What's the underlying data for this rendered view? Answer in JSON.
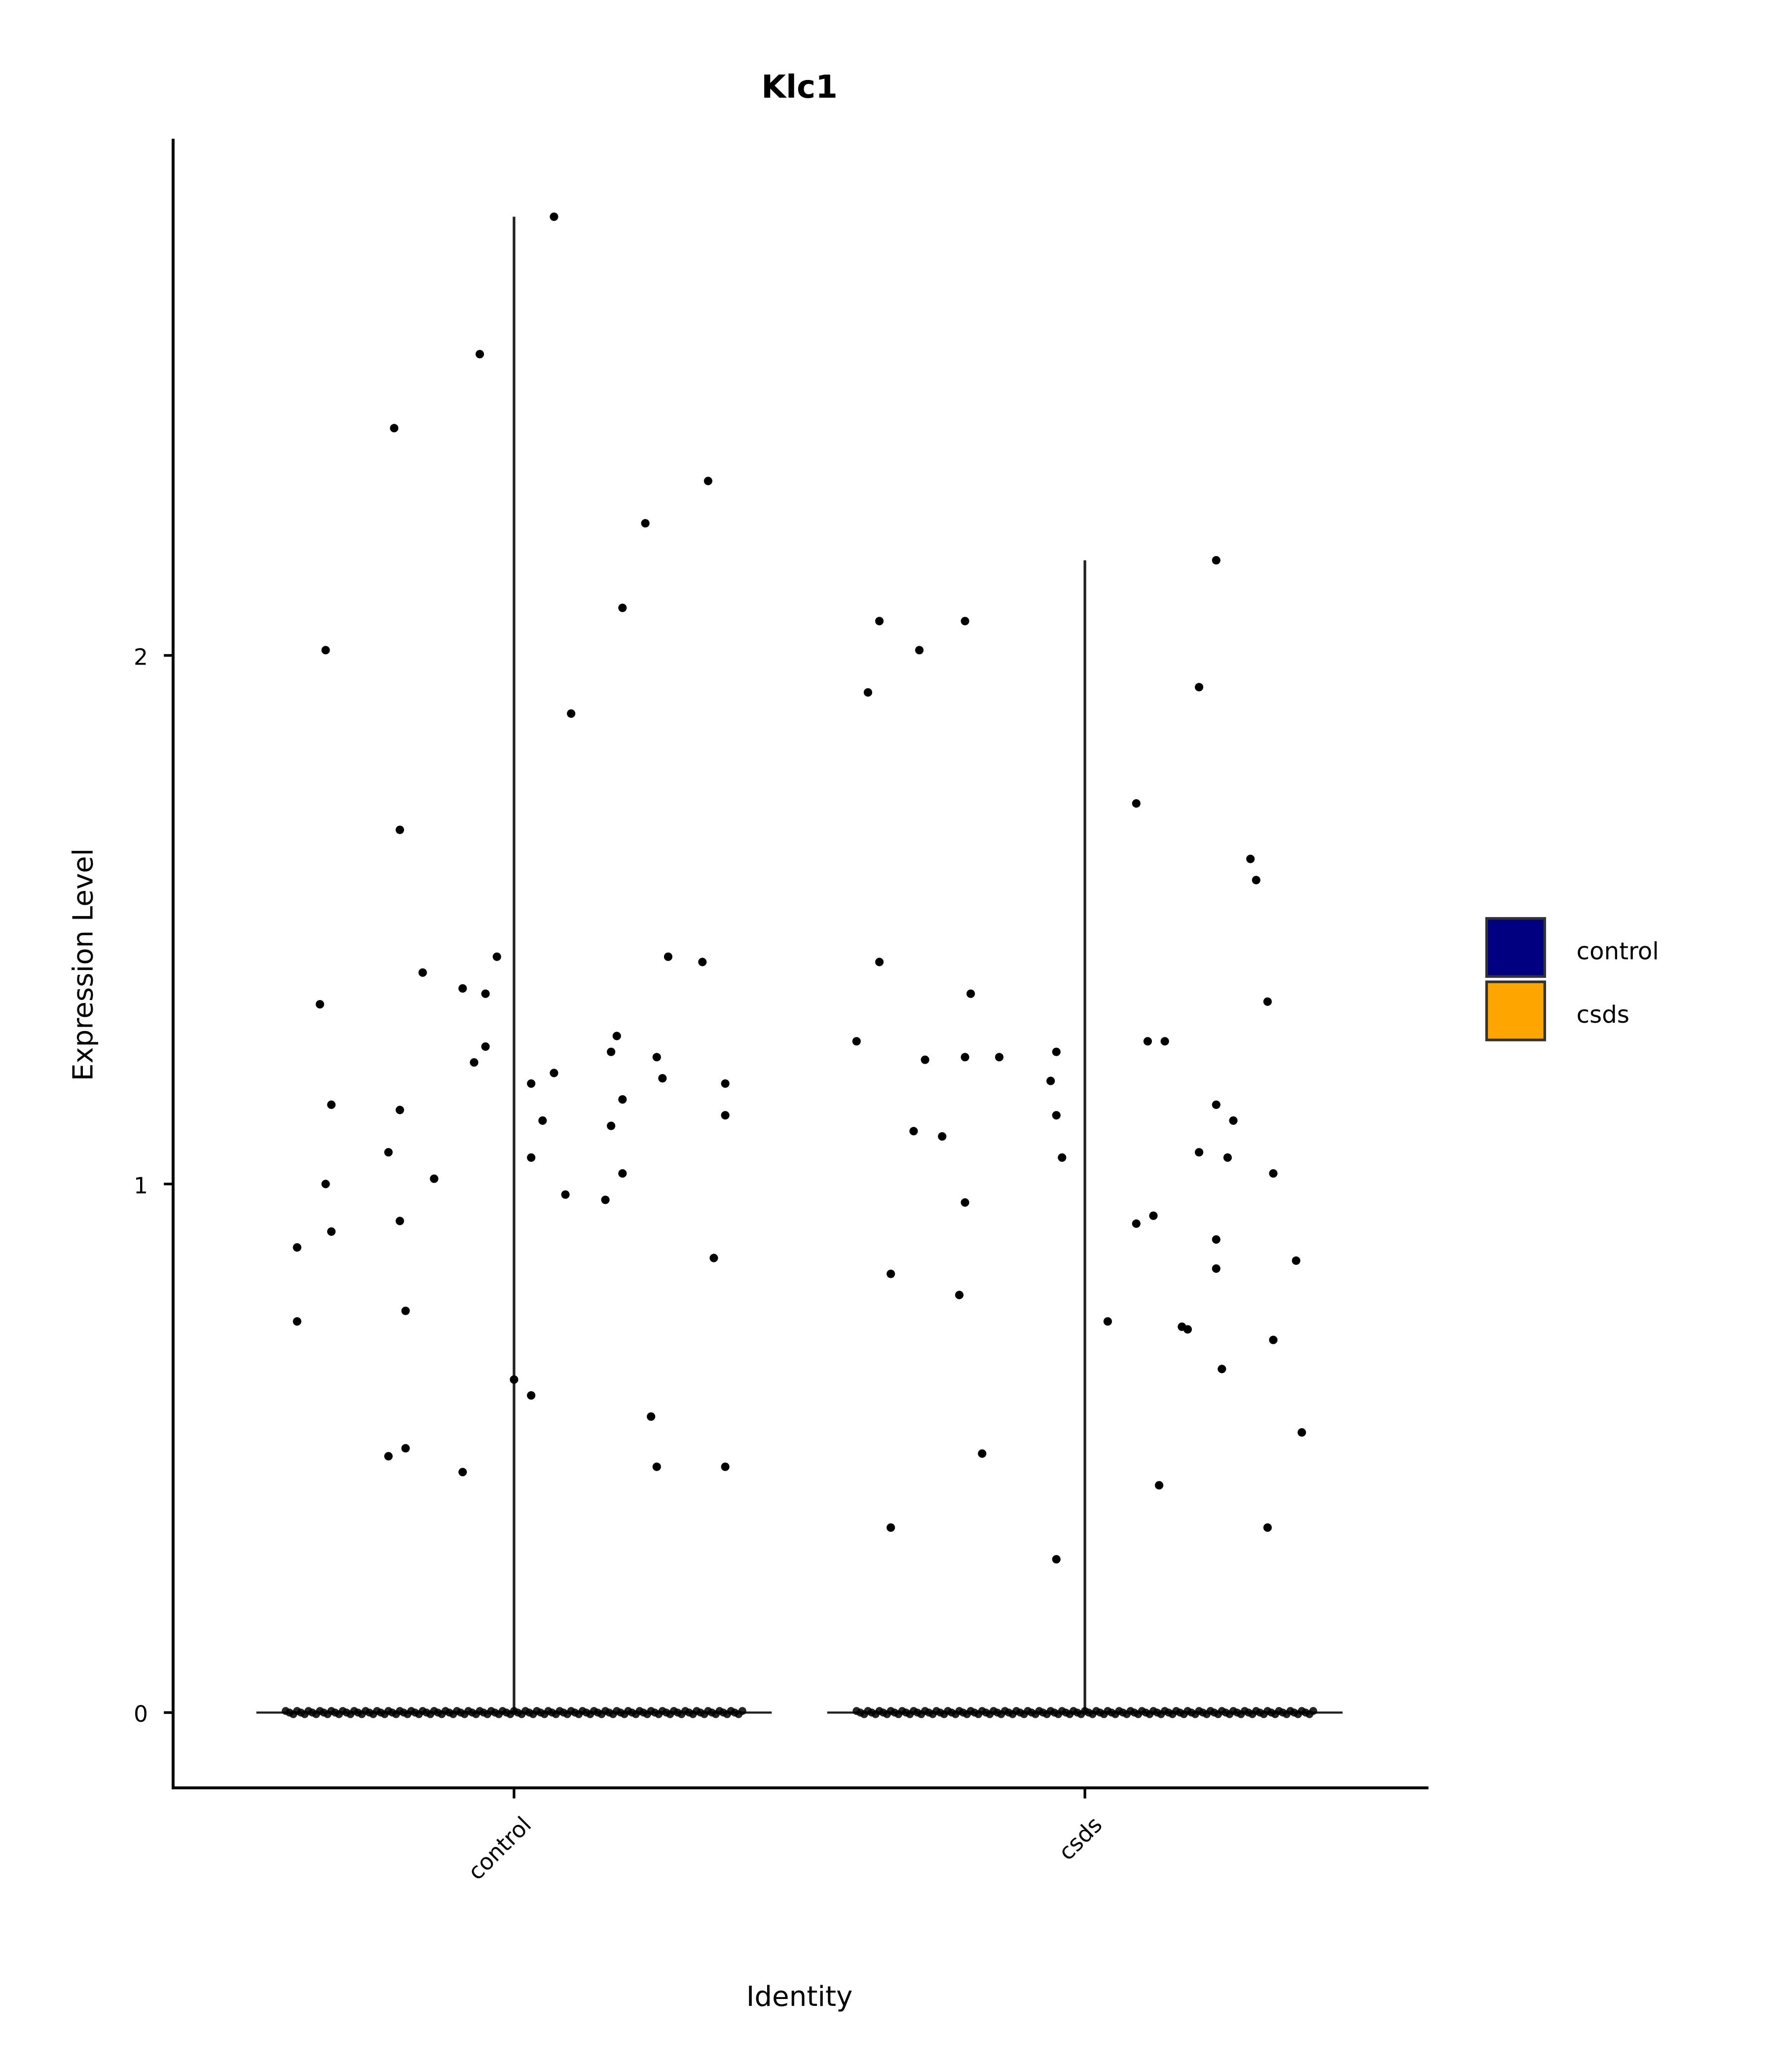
{
  "chart_data": {
    "type": "violin",
    "title": "Klc1",
    "xlabel": "Identity",
    "ylabel": "Expression Level",
    "categories": [
      "control",
      "csds"
    ],
    "yticks": [
      0,
      1,
      2
    ],
    "ytick_labels": [
      "0",
      "1",
      "2"
    ],
    "ylim": [
      -0.14,
      2.98
    ],
    "jitter_note": "points: [x offset from category center in category units, expression value]",
    "legend": {
      "placement": "right",
      "entries": [
        {
          "label": "control",
          "color": "#000080"
        },
        {
          "label": "csds",
          "color": "#FFA500"
        }
      ]
    },
    "series": [
      {
        "name": "control",
        "color": "#000080",
        "max": 2.83,
        "zero_count_jitter_range": [
          -0.4,
          0.4
        ],
        "points": [
          [
            0.07,
            2.83
          ],
          [
            -0.06,
            2.57
          ],
          [
            -0.21,
            2.43
          ],
          [
            0.34,
            2.33
          ],
          [
            0.23,
            2.25
          ],
          [
            0.19,
            2.09
          ],
          [
            -0.33,
            2.01
          ],
          [
            0.1,
            1.89
          ],
          [
            -0.2,
            1.67
          ],
          [
            -0.03,
            1.43
          ],
          [
            0.27,
            1.43
          ],
          [
            0.33,
            1.42
          ],
          [
            -0.16,
            1.4
          ],
          [
            -0.09,
            1.37
          ],
          [
            -0.05,
            1.36
          ],
          [
            -0.34,
            1.34
          ],
          [
            0.18,
            1.28
          ],
          [
            -0.05,
            1.26
          ],
          [
            0.17,
            1.25
          ],
          [
            0.25,
            1.24
          ],
          [
            -0.07,
            1.23
          ],
          [
            0.07,
            1.21
          ],
          [
            0.26,
            1.2
          ],
          [
            0.03,
            1.19
          ],
          [
            0.37,
            1.19
          ],
          [
            -0.32,
            1.15
          ],
          [
            0.19,
            1.16
          ],
          [
            -0.2,
            1.14
          ],
          [
            0.05,
            1.12
          ],
          [
            0.37,
            1.13
          ],
          [
            0.17,
            1.11
          ],
          [
            -0.22,
            1.06
          ],
          [
            0.03,
            1.05
          ],
          [
            0.19,
            1.02
          ],
          [
            -0.14,
            1.01
          ],
          [
            -0.33,
            1.0
          ],
          [
            0.09,
            0.98
          ],
          [
            0.16,
            0.97
          ],
          [
            -0.2,
            0.93
          ],
          [
            -0.32,
            0.91
          ],
          [
            -0.38,
            0.88
          ],
          [
            0.35,
            0.86
          ],
          [
            -0.19,
            0.76
          ],
          [
            -0.38,
            0.74
          ],
          [
            0.0,
            0.63
          ],
          [
            0.03,
            0.6
          ],
          [
            0.24,
            0.56
          ],
          [
            -0.19,
            0.5
          ],
          [
            -0.22,
            0.485
          ],
          [
            -0.09,
            0.455
          ],
          [
            0.25,
            0.465
          ],
          [
            0.37,
            0.465
          ]
        ]
      },
      {
        "name": "csds",
        "color": "#FFA500",
        "max": 2.18,
        "zero_count_jitter_range": [
          -0.4,
          0.4
        ],
        "points": [
          [
            0.23,
            2.18
          ],
          [
            -0.36,
            2.065
          ],
          [
            -0.21,
            2.065
          ],
          [
            -0.29,
            2.01
          ],
          [
            0.2,
            1.94
          ],
          [
            -0.38,
            1.93
          ],
          [
            0.09,
            1.72
          ],
          [
            0.29,
            1.615
          ],
          [
            0.3,
            1.575
          ],
          [
            -0.36,
            1.42
          ],
          [
            -0.2,
            1.36
          ],
          [
            0.32,
            1.345
          ],
          [
            -0.4,
            1.27
          ],
          [
            0.11,
            1.27
          ],
          [
            0.14,
            1.27
          ],
          [
            -0.28,
            1.235
          ],
          [
            -0.21,
            1.24
          ],
          [
            -0.15,
            1.24
          ],
          [
            -0.05,
            1.25
          ],
          [
            -0.06,
            1.195
          ],
          [
            0.23,
            1.15
          ],
          [
            0.26,
            1.12
          ],
          [
            -0.05,
            1.13
          ],
          [
            -0.3,
            1.1
          ],
          [
            -0.25,
            1.09
          ],
          [
            0.2,
            1.06
          ],
          [
            0.25,
            1.05
          ],
          [
            -0.04,
            1.05
          ],
          [
            0.33,
            1.02
          ],
          [
            -0.21,
            0.965
          ],
          [
            0.12,
            0.94
          ],
          [
            0.09,
            0.925
          ],
          [
            0.23,
            0.895
          ],
          [
            0.37,
            0.855
          ],
          [
            -0.34,
            0.83
          ],
          [
            0.23,
            0.84
          ],
          [
            -0.22,
            0.79
          ],
          [
            0.04,
            0.74
          ],
          [
            0.17,
            0.73
          ],
          [
            0.18,
            0.725
          ],
          [
            0.33,
            0.705
          ],
          [
            0.24,
            0.65
          ],
          [
            0.38,
            0.53
          ],
          [
            -0.18,
            0.49
          ],
          [
            0.13,
            0.43
          ],
          [
            -0.34,
            0.35
          ],
          [
            0.32,
            0.35
          ],
          [
            -0.05,
            0.29
          ]
        ]
      }
    ]
  }
}
